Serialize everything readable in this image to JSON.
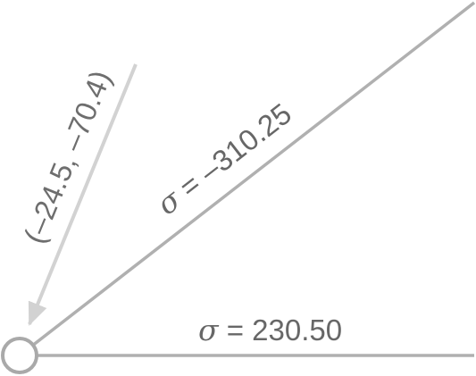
{
  "diagram": {
    "lower_label": {
      "symbol": "σ",
      "value": " = 230.50"
    },
    "upper_label": {
      "symbol": "σ",
      "value": " = –310.25"
    },
    "vector_label": "(–24.5, –70.4)",
    "colors": {
      "ray_lower": "#b0b0b0",
      "ray_upper": "#b0b0b0",
      "arrow": "#d2d2d2",
      "origin_circle": "#a9a9a9",
      "label_text": "#676767",
      "vector_text": "#6e6e6e"
    }
  }
}
